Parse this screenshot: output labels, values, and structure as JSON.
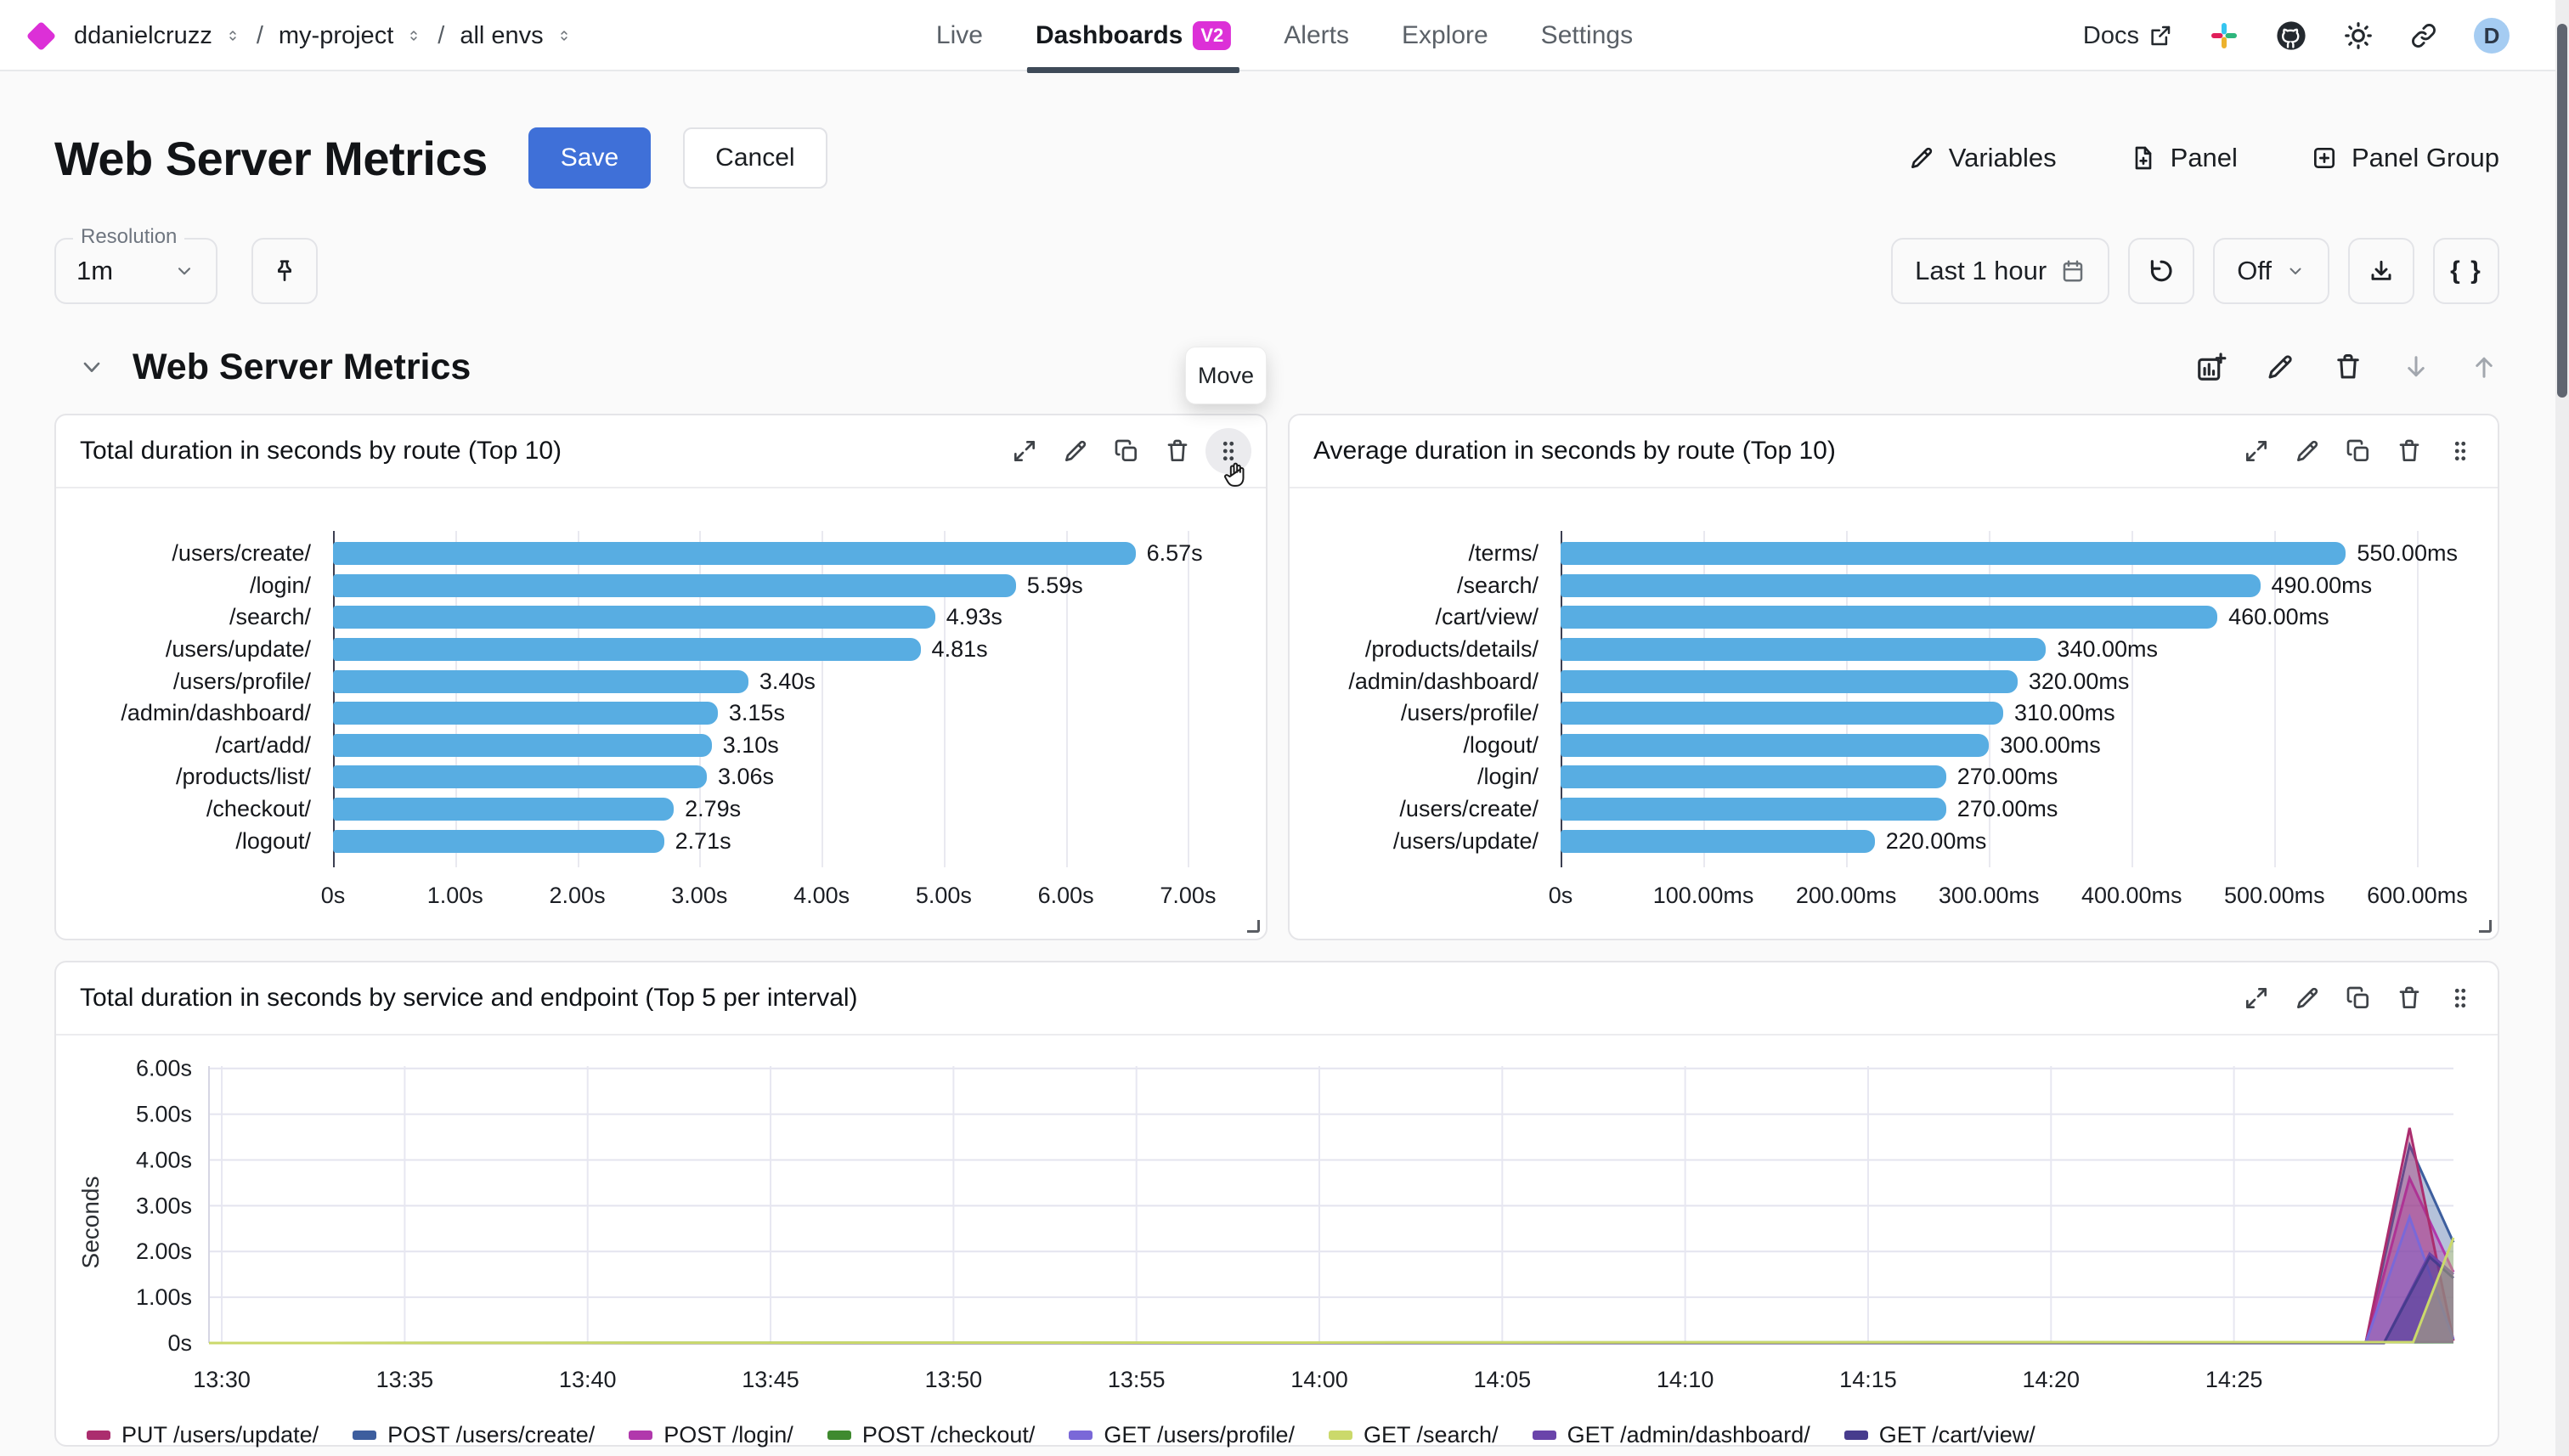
{
  "topnav": {
    "org": "ddanielcruzz",
    "project": "my-project",
    "env": "all envs",
    "slash": "/",
    "items": [
      {
        "label": "Live"
      },
      {
        "label": "Dashboards",
        "badge": "V2",
        "active": true
      },
      {
        "label": "Alerts"
      },
      {
        "label": "Explore"
      },
      {
        "label": "Settings"
      }
    ],
    "docs_label": "Docs",
    "avatar_initial": "D"
  },
  "header": {
    "title": "Web Server Metrics",
    "save_label": "Save",
    "cancel_label": "Cancel",
    "variables_label": "Variables",
    "panel_label": "Panel",
    "panel_group_label": "Panel Group"
  },
  "controls": {
    "resolution_label": "Resolution",
    "resolution_value": "1m",
    "time_range": "Last 1 hour",
    "auto_refresh": "Off",
    "braces": "{ }"
  },
  "section": {
    "title": "Web Server Metrics",
    "move_tooltip": "Move"
  },
  "colors": {
    "brand_magenta": "#dc30d7",
    "save_blue": "#3f70d8",
    "bar_blue": "#58ade2",
    "nav_underline": "#3e4a58"
  },
  "chart_data": [
    {
      "type": "bar",
      "orientation": "horizontal",
      "title": "Total duration in seconds by route (Top 10)",
      "categories": [
        "/users/create/",
        "/login/",
        "/search/",
        "/users/update/",
        "/users/profile/",
        "/admin/dashboard/",
        "/cart/add/",
        "/products/list/",
        "/checkout/",
        "/logout/"
      ],
      "values": [
        6.57,
        5.59,
        4.93,
        4.81,
        3.4,
        3.15,
        3.1,
        3.06,
        2.79,
        2.71
      ],
      "value_labels": [
        "6.57s",
        "5.59s",
        "4.93s",
        "4.81s",
        "3.40s",
        "3.15s",
        "3.10s",
        "3.06s",
        "2.79s",
        "2.71s"
      ],
      "tick_values": [
        0,
        1,
        2,
        3,
        4,
        5,
        6,
        7
      ],
      "tick_labels": [
        "0s",
        "1.00s",
        "2.00s",
        "3.00s",
        "4.00s",
        "5.00s",
        "6.00s",
        "7.00s"
      ],
      "axis_end": 7.47,
      "bar_color": "#58ade2",
      "layout": {
        "label_width": 326
      }
    },
    {
      "type": "bar",
      "orientation": "horizontal",
      "title": "Average duration in seconds by route (Top 10)",
      "categories": [
        "/terms/",
        "/search/",
        "/cart/view/",
        "/products/details/",
        "/admin/dashboard/",
        "/users/profile/",
        "/logout/",
        "/login/",
        "/users/create/",
        "/users/update/"
      ],
      "values": [
        550,
        490,
        460,
        340,
        320,
        310,
        300,
        270,
        270,
        220
      ],
      "value_labels": [
        "550.00ms",
        "490.00ms",
        "460.00ms",
        "340.00ms",
        "320.00ms",
        "310.00ms",
        "300.00ms",
        "270.00ms",
        "270.00ms",
        "220.00ms"
      ],
      "tick_values": [
        0,
        100,
        200,
        300,
        400,
        500,
        600
      ],
      "tick_labels": [
        "0s",
        "100.00ms",
        "200.00ms",
        "300.00ms",
        "400.00ms",
        "500.00ms",
        "600.00ms"
      ],
      "axis_end": 642,
      "bar_color": "#58ade2",
      "layout": {
        "label_width": 319
      }
    },
    {
      "type": "area",
      "title": "Total duration in seconds by service and endpoint (Top 5 per interval)",
      "ylabel": "Seconds",
      "ylim": [
        0,
        6.05
      ],
      "y_tick_values": [
        0,
        1,
        2,
        3,
        4,
        5,
        6
      ],
      "y_tick_labels": [
        "0s",
        "1.00s",
        "2.00s",
        "3.00s",
        "4.00s",
        "5.00s",
        "6.00s"
      ],
      "x_domain": [
        -0.35,
        61.0
      ],
      "x_tick_values": [
        0,
        5,
        10,
        15,
        20,
        25,
        30,
        35,
        40,
        45,
        50,
        55
      ],
      "x_tick_labels": [
        "13:30",
        "13:35",
        "13:40",
        "13:45",
        "13:50",
        "13:55",
        "14:00",
        "14:05",
        "14:10",
        "14:15",
        "14:20",
        "14:25"
      ],
      "draw_order": [
        3,
        1,
        2,
        0,
        4,
        6,
        7,
        5
      ],
      "series": [
        {
          "name": "PUT /users/update/",
          "color": "#ab2d6e",
          "points": [
            [
              -0.35,
              0
            ],
            [
              58.6,
              0
            ],
            [
              59.8,
              4.7
            ],
            [
              61.0,
              0.05
            ]
          ]
        },
        {
          "name": "POST /users/create/",
          "color": "#3d5e9e",
          "points": [
            [
              -0.35,
              0
            ],
            [
              58.6,
              0
            ],
            [
              59.8,
              4.32
            ],
            [
              61.0,
              2.2
            ]
          ]
        },
        {
          "name": "POST /login/",
          "color": "#b138ac",
          "points": [
            [
              -0.35,
              0
            ],
            [
              58.6,
              0
            ],
            [
              59.8,
              3.6
            ],
            [
              61.0,
              1.55
            ]
          ]
        },
        {
          "name": "POST /checkout/",
          "color": "#3f8a2f",
          "points": [
            [
              -0.35,
              0
            ],
            [
              61.0,
              0.02
            ]
          ]
        },
        {
          "name": "GET /users/profile/",
          "color": "#7a68d8",
          "points": [
            [
              -0.35,
              0
            ],
            [
              58.6,
              0
            ],
            [
              59.8,
              2.75
            ],
            [
              61.0,
              0.08
            ]
          ]
        },
        {
          "name": "GET /search/",
          "color": "#cbd96b",
          "points": [
            [
              -0.35,
              0
            ],
            [
              59.9,
              0.02
            ],
            [
              61.0,
              2.3
            ]
          ]
        },
        {
          "name": "GET /admin/dashboard/",
          "color": "#6a44aa",
          "points": [
            [
              -0.35,
              0
            ],
            [
              59.1,
              0
            ],
            [
              60.35,
              1.95
            ],
            [
              61.0,
              1.5
            ]
          ]
        },
        {
          "name": "GET /cart/view/",
          "color": "#473c8d",
          "points": [
            [
              -0.35,
              0
            ],
            [
              59.1,
              0
            ],
            [
              60.35,
              1.88
            ],
            [
              61.0,
              1.42
            ]
          ]
        }
      ]
    }
  ]
}
